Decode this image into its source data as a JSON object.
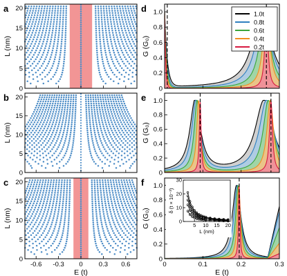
{
  "colors": {
    "dots": "#4f8ec7",
    "band": "#f29595",
    "series": [
      "#000000",
      "#2e7fc0",
      "#3aa53a",
      "#f28e1f",
      "#d7193f"
    ],
    "fills": [
      "#c8c8c8",
      "#a8cbe6",
      "#9ed69b",
      "#f7c182",
      "#f08a9b"
    ]
  },
  "chart_data": [
    {
      "panel": "a",
      "type": "scatter",
      "xlabel": "",
      "ylabel": "L (nm)",
      "xlim": [
        -0.75,
        0.75
      ],
      "ylim": [
        0,
        21
      ],
      "xticks": [],
      "yticks": [
        "0",
        "5",
        "10",
        "15",
        "20"
      ],
      "gap_band": [
        -0.15,
        0.15
      ],
      "center_mode_x": 0,
      "description_values": {
        "band_min_L": 0,
        "band_max_L": 21
      }
    },
    {
      "panel": "b",
      "type": "scatter",
      "xlabel": "",
      "ylabel": "L (nm)",
      "xlim": [
        -0.75,
        0.75
      ],
      "ylim": [
        0,
        21
      ],
      "xticks": [],
      "yticks": [
        "0",
        "5",
        "10",
        "15",
        "20"
      ]
    },
    {
      "panel": "c",
      "type": "scatter",
      "xlabel": "E (t)",
      "ylabel": "L (nm)",
      "xlim": [
        -0.75,
        0.75
      ],
      "ylim": [
        0,
        21
      ],
      "xticks": [
        "-0.6",
        "-0.3",
        "0",
        "0.3",
        "0.6"
      ],
      "yticks": [
        "0",
        "5",
        "10",
        "15",
        "20"
      ],
      "gap_band": [
        -0.1,
        0.1
      ],
      "center_mode_x": 0
    },
    {
      "panel": "d",
      "type": "area",
      "xlabel": "",
      "ylabel": "G (G₀)",
      "xlim": [
        0,
        0.3
      ],
      "ylim": [
        0,
        1.1
      ],
      "xticks": [],
      "yticks": [
        "0",
        "0.2",
        "0.4",
        "0.6",
        "0.8",
        "1.0"
      ],
      "legend_position": "top-right",
      "series_names": [
        "1.0t",
        "0.8t",
        "0.6t",
        "0.4t",
        "0.2t"
      ],
      "dashed_lines_x": [
        0.007,
        0.266
      ],
      "peaks": [
        {
          "name": "1.0t",
          "left_peak_x": 0.003,
          "right_peak_x": 0.254,
          "width": 0.03
        },
        {
          "name": "0.8t",
          "left_peak_x": 0.003,
          "right_peak_x": 0.258,
          "width": 0.024
        },
        {
          "name": "0.6t",
          "left_peak_x": 0.003,
          "right_peak_x": 0.262,
          "width": 0.017
        },
        {
          "name": "0.4t",
          "left_peak_x": 0.003,
          "right_peak_x": 0.266,
          "width": 0.011
        },
        {
          "name": "0.2t",
          "left_peak_x": 0.003,
          "right_peak_x": 0.266,
          "width": 0.005
        }
      ]
    },
    {
      "panel": "e",
      "type": "area",
      "xlabel": "",
      "ylabel": "G (G₀)",
      "xlim": [
        0,
        0.3
      ],
      "ylim": [
        0,
        1.1
      ],
      "xticks": [],
      "yticks": [
        "0",
        "0.2",
        "0.4",
        "0.6",
        "0.8",
        "1.0"
      ],
      "dashed_lines_x": [
        0.093,
        0.278
      ]
    },
    {
      "panel": "f",
      "type": "area",
      "xlabel": "E (t)",
      "ylabel": "G (G₀)",
      "xlim": [
        0,
        0.3
      ],
      "ylim": [
        0,
        1.1
      ],
      "xticks": [
        "0",
        "0.1",
        "0.2",
        "0.3"
      ],
      "yticks": [
        "0",
        "0.2",
        "0.4",
        "0.6",
        "0.8",
        "1.0"
      ],
      "dashed_lines_x": [
        0.195
      ],
      "inset": {
        "type": "line",
        "xlabel": "L (nm)",
        "ylabel": "δ (t × 10⁻³)",
        "xlim": [
          0,
          21
        ],
        "ylim": [
          0,
          30
        ],
        "xticks": [
          "5",
          "10",
          "15",
          "20"
        ],
        "yticks": [
          "0",
          "10",
          "20",
          "30"
        ],
        "x": [
          2,
          3,
          4,
          5,
          6,
          7,
          8,
          9,
          10,
          12,
          14,
          16,
          18,
          20
        ],
        "series": [
          {
            "values": [
              21.0,
              14.5,
              10.5,
              8.0,
              6.4,
              5.2,
              4.4,
              3.8,
              3.3,
              2.6,
              2.1,
              1.8,
              1.6,
              1.4
            ]
          },
          {
            "values": [
              18.5,
              12.5,
              9.0,
              6.8,
              5.4,
              4.4,
              3.7,
              3.2,
              2.8,
              2.2,
              1.8,
              1.5,
              1.3,
              1.1
            ]
          },
          {
            "values": [
              15.5,
              10.5,
              7.5,
              5.6,
              4.4,
              3.6,
              3.0,
              2.6,
              2.2,
              1.8,
              1.5,
              1.2,
              1.0,
              0.9
            ]
          },
          {
            "values": [
              12.0,
              8.0,
              5.6,
              4.2,
              3.3,
              2.7,
              2.2,
              1.9,
              1.6,
              1.3,
              1.1,
              0.9,
              0.7,
              0.6
            ]
          },
          {
            "values": [
              7.5,
              5.0,
              3.5,
              2.6,
              2.0,
              1.6,
              1.3,
              1.1,
              0.9,
              0.7,
              0.6,
              0.5,
              0.4,
              0.3
            ]
          }
        ]
      }
    }
  ]
}
